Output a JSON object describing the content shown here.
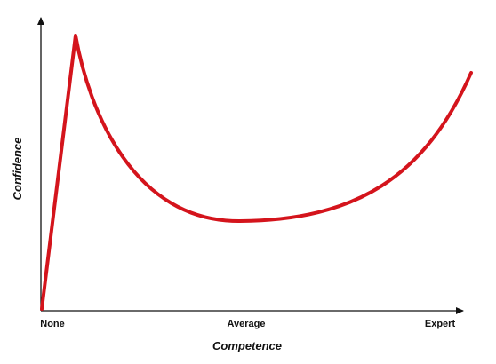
{
  "x_axis": {
    "title": "Competence",
    "labels": [
      "None",
      "Average",
      "Expert"
    ]
  },
  "y_axis": {
    "title": "Confidence"
  }
}
